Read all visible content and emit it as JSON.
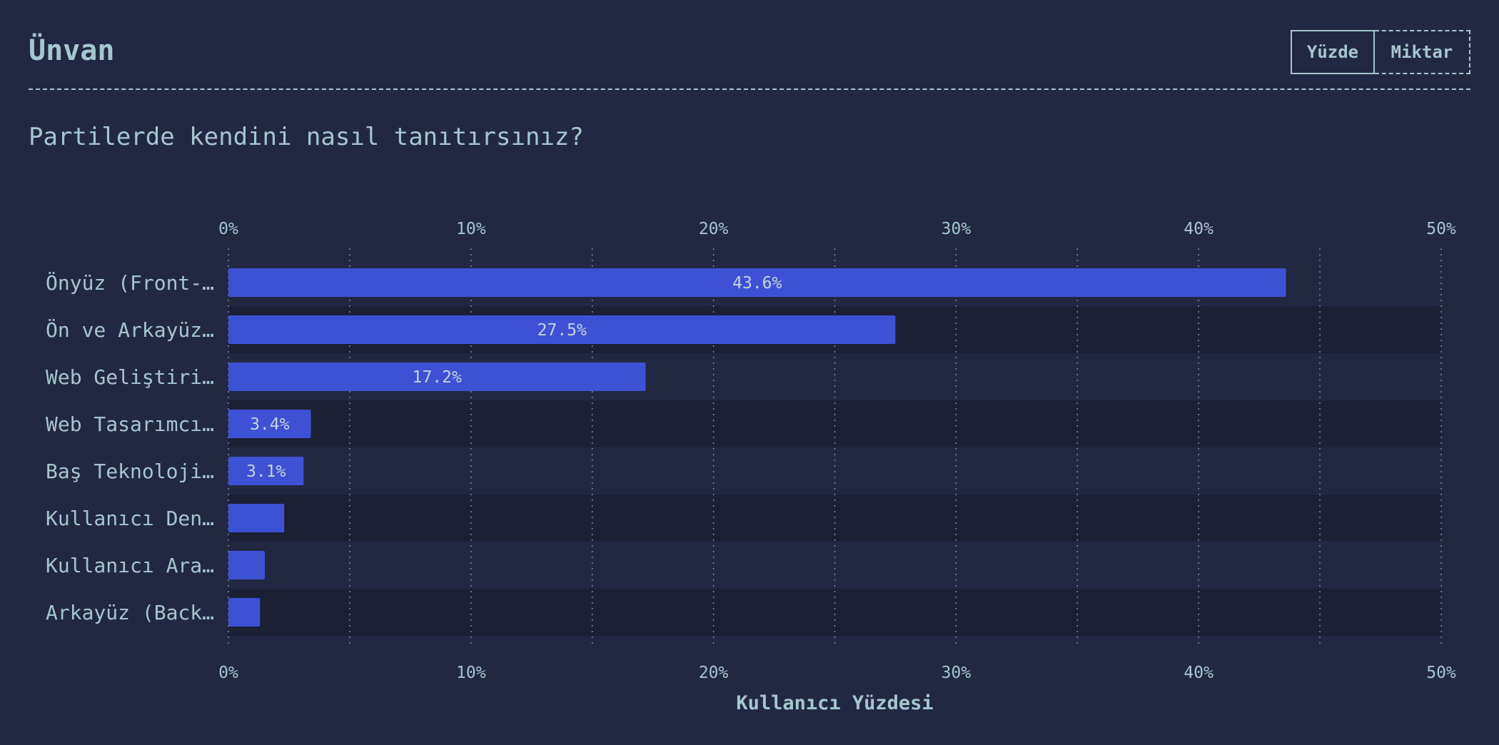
{
  "header": {
    "title": "Ünvan",
    "toggle": {
      "percent_label": "Yüzde",
      "count_label": "Miktar",
      "selected": "Yüzde"
    }
  },
  "question": "Partilerde kendini nasıl tanıtırsınız?",
  "colors": {
    "background": "#232842",
    "band": "#1c2035",
    "bar": "#3e51d5",
    "text": "#a5c6cd"
  },
  "chart_data": {
    "type": "bar",
    "orientation": "horizontal",
    "categories": [
      "Önyüz (Front-…",
      "Ön ve Arkayüz…",
      "Web Geliştiri…",
      "Web Tasarımcı…",
      "Baş Teknoloji…",
      "Kullanıcı Den…",
      "Kullanıcı Ara…",
      "Arkayüz (Back…"
    ],
    "values": [
      43.6,
      27.5,
      17.2,
      3.4,
      3.1,
      2.3,
      1.5,
      1.3
    ],
    "value_labels": [
      "43.6%",
      "27.5%",
      "17.2%",
      "3.4%",
      "3.1%",
      "",
      "",
      ""
    ],
    "xlim": [
      0,
      50
    ],
    "xticks": [
      0,
      10,
      20,
      30,
      40,
      50
    ],
    "xtick_labels": [
      "0%",
      "10%",
      "20%",
      "30%",
      "40%",
      "50%"
    ],
    "xlabel": "Kullanıcı Yüzdesi",
    "ylabel": "",
    "grid": "vertical dotted"
  }
}
